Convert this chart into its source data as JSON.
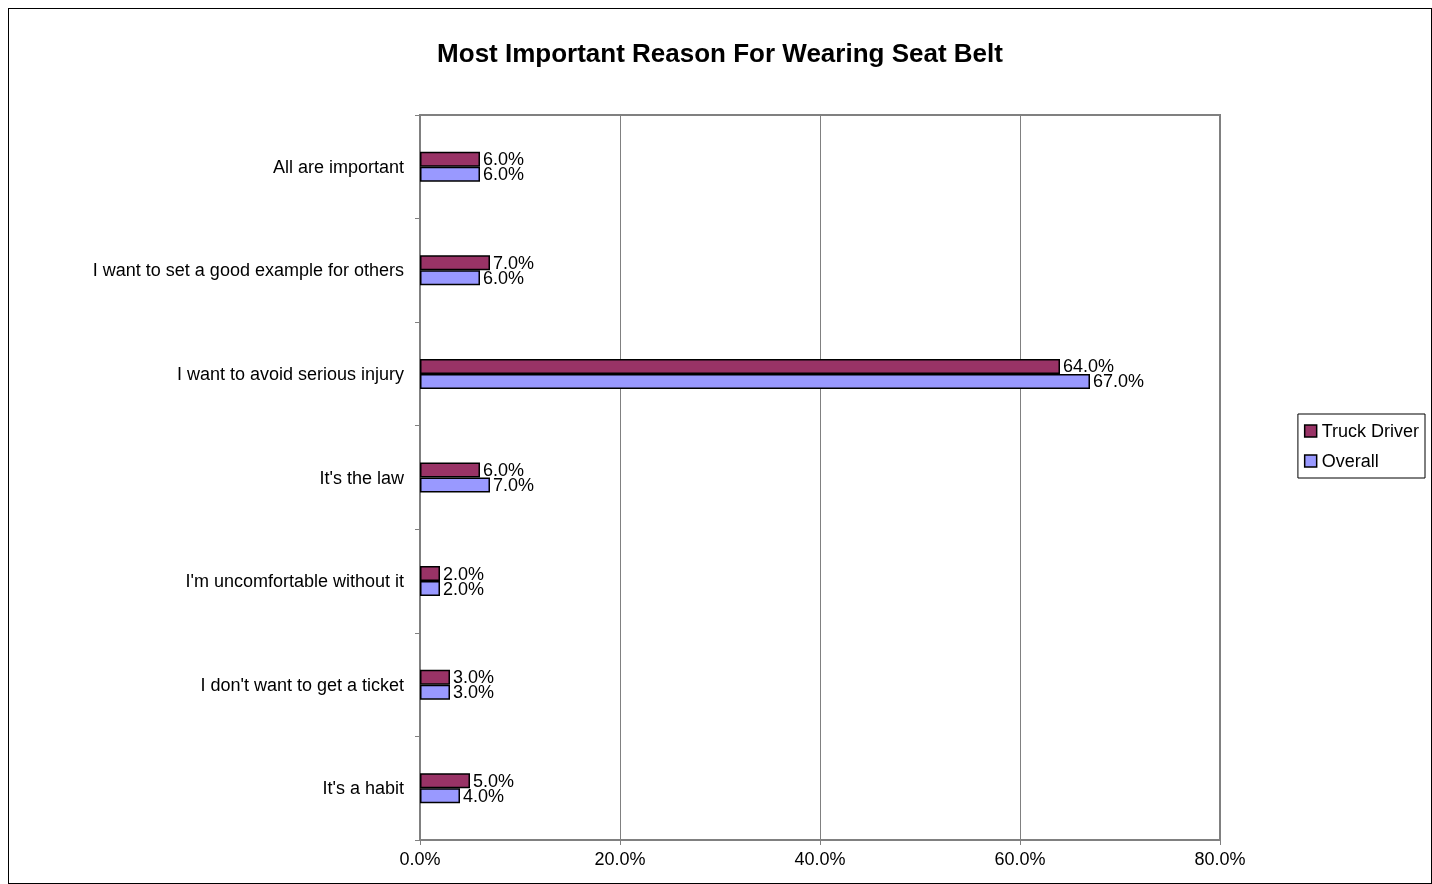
{
  "chart_data": {
    "type": "bar",
    "orientation": "horizontal",
    "title": "Most Important Reason For Wearing Seat Belt",
    "categories": [
      "All are important",
      "I want to set a good example for others",
      "I want to avoid serious injury",
      "It's the law",
      "I'm uncomfortable without it",
      "I don't want to get a ticket",
      "It's a habit"
    ],
    "series": [
      {
        "name": "Truck Driver",
        "color": "#993366",
        "values": [
          6,
          7,
          64,
          6,
          2,
          3,
          5
        ],
        "value_labels": [
          "6.0%",
          "7.0%",
          "64.0%",
          "6.0%",
          "2.0%",
          "3.0%",
          "5.0%"
        ]
      },
      {
        "name": "Overall",
        "color": "#9999ff",
        "values": [
          6,
          6,
          67,
          7,
          2,
          3,
          4
        ],
        "value_labels": [
          "6.0%",
          "6.0%",
          "67.0%",
          "7.0%",
          "2.0%",
          "3.0%",
          "4.0%"
        ]
      }
    ],
    "xlim": [
      0,
      80
    ],
    "xticks": [
      {
        "value": 0,
        "label": "0.0%"
      },
      {
        "value": 20,
        "label": "20.0%"
      },
      {
        "value": 40,
        "label": "40.0%"
      },
      {
        "value": 60,
        "label": "60.0%"
      },
      {
        "value": 80,
        "label": "80.0%"
      }
    ],
    "grid": "x",
    "legend": "right"
  }
}
